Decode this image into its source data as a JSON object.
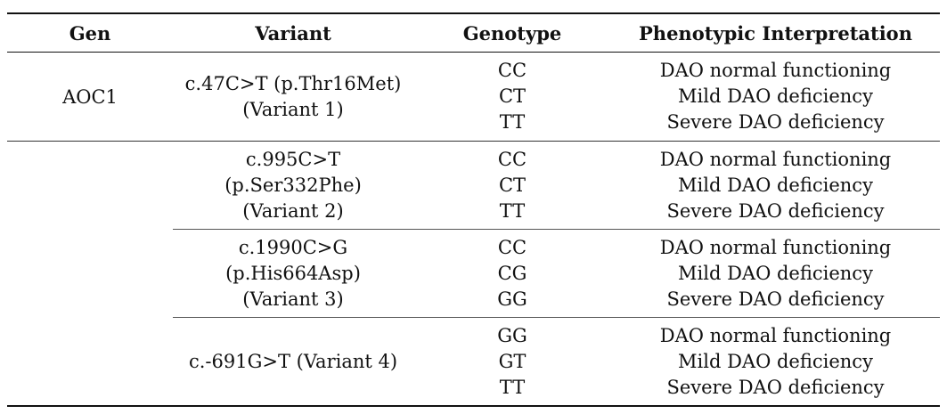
{
  "table": {
    "headers": {
      "gen": "Gen",
      "variant": "Variant",
      "genotype": "Genotype",
      "phenotype": "Phenotypic Interpretation"
    },
    "rows": [
      {
        "gen": "AOC1",
        "variant_lines": [
          "c.47C>T (p.Thr16Met)",
          "(Variant 1)"
        ],
        "genotypes": [
          "CC",
          "CT",
          "TT"
        ],
        "phenotypes": [
          "DAO normal functioning",
          "Mild DAO deficiency",
          "Severe DAO deficiency"
        ]
      },
      {
        "gen": "",
        "variant_lines": [
          "c.995C>T",
          "(p.Ser332Phe)",
          "(Variant 2)"
        ],
        "genotypes": [
          "CC",
          "CT",
          "TT"
        ],
        "phenotypes": [
          "DAO normal functioning",
          "Mild DAO deficiency",
          "Severe DAO deficiency"
        ]
      },
      {
        "gen": "",
        "variant_lines": [
          "c.1990C>G",
          "(p.His664Asp)",
          "(Variant 3)"
        ],
        "genotypes": [
          "CC",
          "CG",
          "GG"
        ],
        "phenotypes": [
          "DAO normal functioning",
          "Mild DAO deficiency",
          "Severe DAO deficiency"
        ]
      },
      {
        "gen": "",
        "variant_lines": [
          "c.-691G>T (Variant 4)"
        ],
        "genotypes": [
          "GG",
          "GT",
          "TT"
        ],
        "phenotypes": [
          "DAO normal functioning",
          "Mild DAO deficiency",
          "Severe DAO deficiency"
        ]
      }
    ]
  }
}
